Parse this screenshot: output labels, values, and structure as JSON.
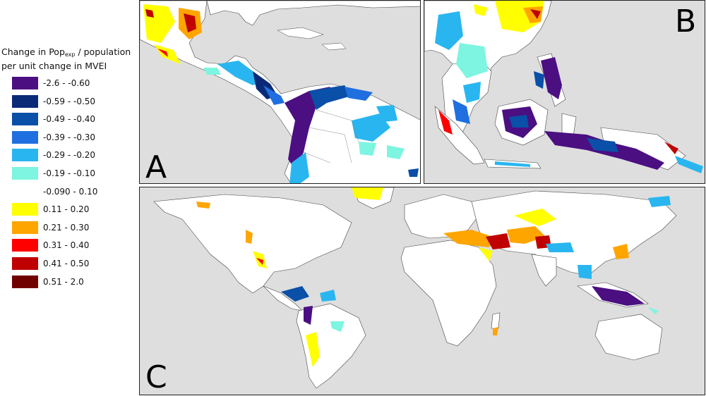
{
  "legend": {
    "title_line1_prefix": "Change in Pop",
    "title_line1_sub": "exp",
    "title_line1_suffix": " / population",
    "title_line2": "per unit change in MVEI",
    "items": [
      {
        "label": "-2.6 - -0.60",
        "color": "#4b0f82"
      },
      {
        "label": "-0.59 - -0.50",
        "color": "#0a2a78"
      },
      {
        "label": "-0.49 - -0.40",
        "color": "#0a4fa8"
      },
      {
        "label": "-0.39 - -0.30",
        "color": "#1f6fe0"
      },
      {
        "label": "-0.29 - -0.20",
        "color": "#29b6f0"
      },
      {
        "label": "-0.19 - -0.10",
        "color": "#7df5e0"
      },
      {
        "label": "-0.090 - 0.10",
        "color": "#ffffff"
      },
      {
        "label": "0.11 - 0.20",
        "color": "#ffff00"
      },
      {
        "label": "0.21 - 0.30",
        "color": "#ffa500"
      },
      {
        "label": "0.31 - 0.40",
        "color": "#ff0000"
      },
      {
        "label": "0.41 - 0.50",
        "color": "#c00000"
      },
      {
        "label": "0.51 - 2.0",
        "color": "#700000"
      }
    ]
  },
  "panels": {
    "a": {
      "letter": "A"
    },
    "b": {
      "letter": "B"
    },
    "c": {
      "letter": "C"
    }
  },
  "colors": {
    "ocean": "#dedede",
    "land": "#ffffff",
    "border": "#222222"
  }
}
